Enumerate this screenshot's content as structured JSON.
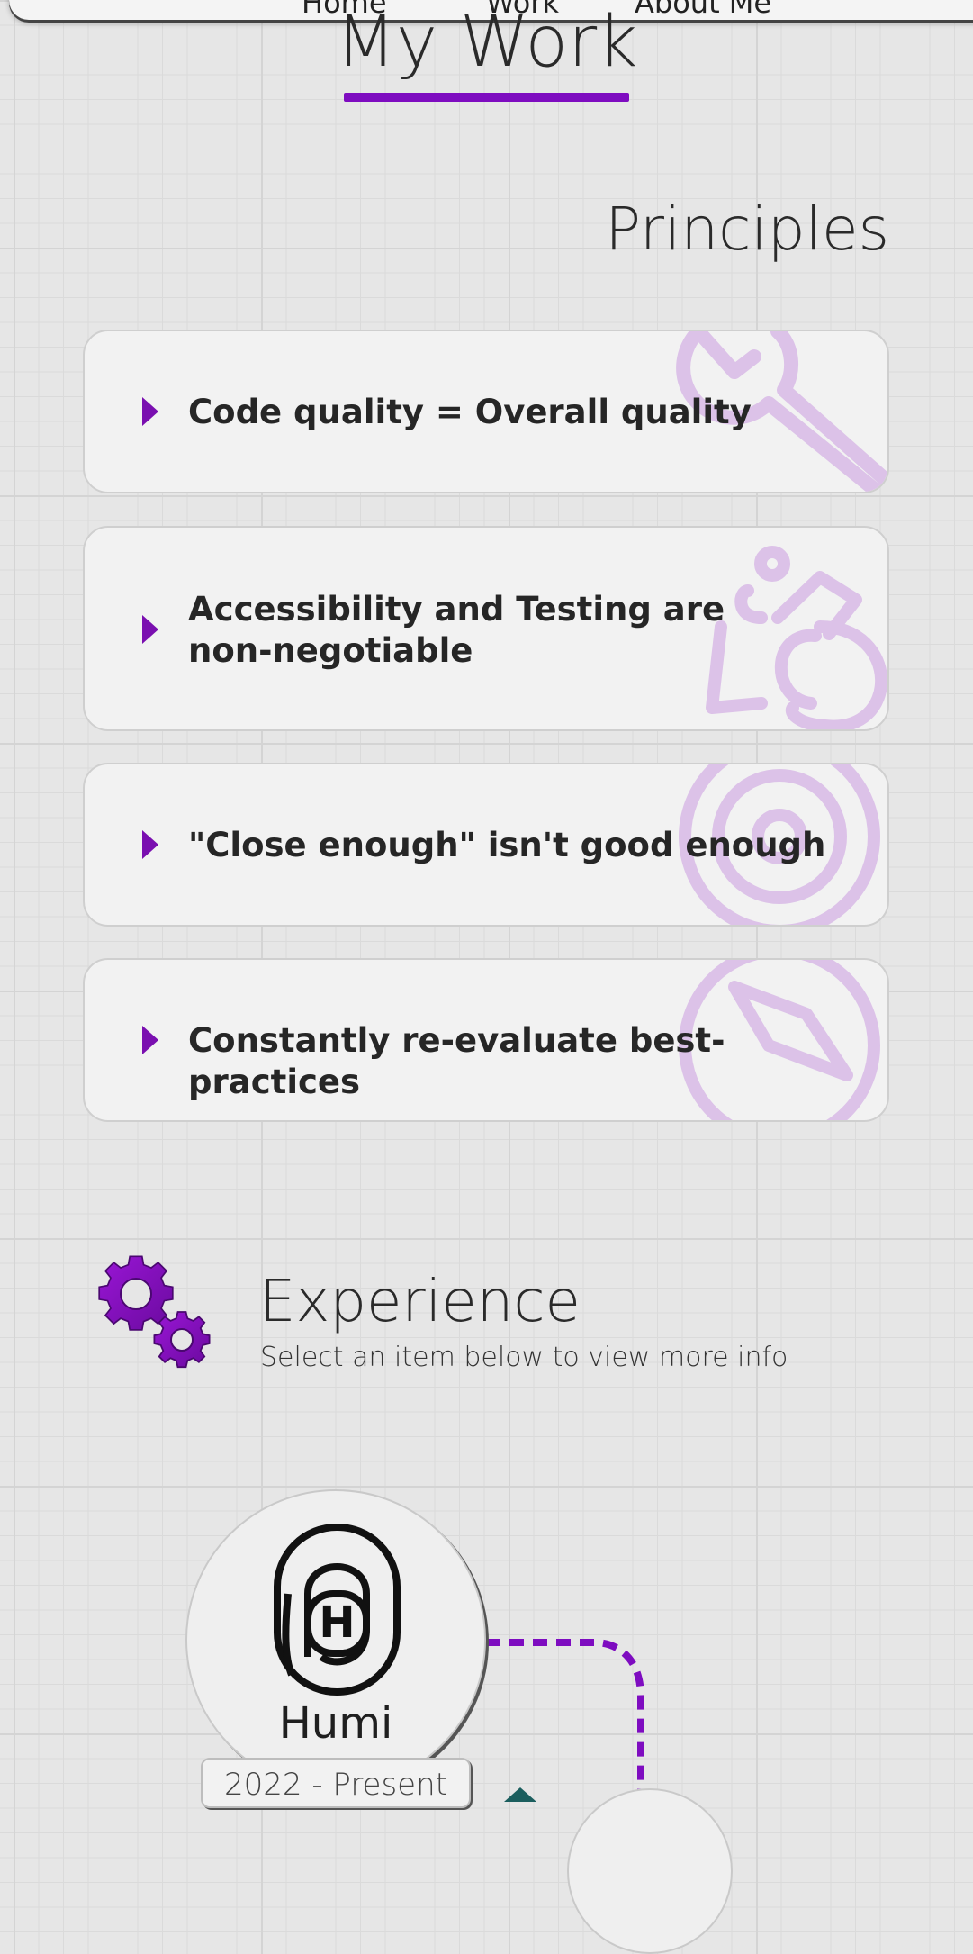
{
  "nav": {
    "links": [
      "Home",
      "Work",
      "About Me"
    ]
  },
  "page": {
    "title": "My Work"
  },
  "principles": {
    "heading": "Principles",
    "items": [
      {
        "label": "Code quality = Overall quality",
        "icon": "wrench-icon"
      },
      {
        "label": "Accessibility and Testing are non-negotiable",
        "icon": "wheelchair-icon"
      },
      {
        "label": "\"Close enough\" isn't good enough",
        "icon": "target-icon"
      },
      {
        "label": "Constantly re-evaluate best-practices",
        "icon": "compass-icon"
      }
    ]
  },
  "experience": {
    "heading": "Experience",
    "subtitle": "Select an item below to view more info",
    "items": [
      {
        "name": "Humi",
        "dates": "2022 - Present",
        "logo": "humi-logo"
      }
    ]
  },
  "colors": {
    "accent": "#7e0cc0",
    "watermark": "#dcc2e8",
    "card_bg": "#f2f2f2"
  }
}
